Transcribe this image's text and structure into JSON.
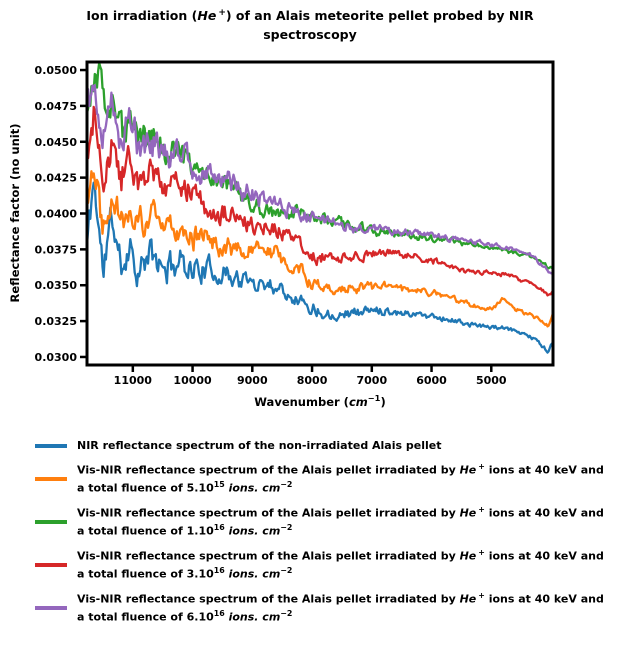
{
  "title": {
    "pre": "Ion irradiation (",
    "ion": "He",
    "ion_sup": "+",
    "post": ") of an Alais meteorite pellet probed by NIR spectroscopy"
  },
  "axes": {
    "ylabel": "Reflectance factor (no unit)",
    "xlabel_pre": "Wavenumber (",
    "xlabel_unit": "cm",
    "xlabel_sup": "−1",
    "xlabel_post": ")"
  },
  "legend": {
    "items": [
      {
        "pre": "NIR reflectance spectrum of the non-irradiated Alais pellet"
      },
      {
        "pre": "Vis-NIR reflectance spectrum of the Alais pellet irradiated by ",
        "ion": "He",
        "ion_sup": "+",
        "mid": " ions at 40 keV and a total fluence of ",
        "coef": "5.10",
        "coef_sup": "15",
        "unit": " ions. cm",
        "unit_sup": "−2"
      },
      {
        "pre": "Vis-NIR reflectance spectrum of the Alais pellet irradiated by ",
        "ion": "He",
        "ion_sup": "+",
        "mid": " ions at 40 keV and a total fluence of ",
        "coef": "1.10",
        "coef_sup": "16",
        "unit": " ions. cm",
        "unit_sup": "−2"
      },
      {
        "pre": "Vis-NIR reflectance spectrum of the Alais pellet irradiated by ",
        "ion": "He",
        "ion_sup": "+",
        "mid": " ions at 40 keV and a total fluence of ",
        "coef": "3.10",
        "coef_sup": "16",
        "unit": " ions. cm",
        "unit_sup": "−2"
      },
      {
        "pre": "Vis-NIR reflectance spectrum of the Alais pellet irradiated by ",
        "ion": "He",
        "ion_sup": "+",
        "mid": " ions at 40 keV and a total fluence of ",
        "coef": "6.10",
        "coef_sup": "16",
        "unit": " ions. cm",
        "unit_sup": "−2"
      }
    ]
  },
  "chart_data": {
    "type": "line",
    "title": "Ion irradiation (He+) of an Alais meteorite pellet probed by NIR spectroscopy",
    "xlabel": "Wavenumber (cm^-1)",
    "ylabel": "Reflectance factor (no unit)",
    "grid": false,
    "legend_position": "below",
    "x_axis": {
      "min": 3967,
      "max": 11767,
      "inverted": true,
      "ticks": [
        11000,
        10000,
        9000,
        8000,
        7000,
        6000,
        5000
      ]
    },
    "y_axis": {
      "min": 0.02944,
      "max": 0.05056,
      "ticks": [
        0.05,
        0.0475,
        0.045,
        0.0425,
        0.04,
        0.0375,
        0.035,
        0.0325,
        0.03
      ],
      "tick_labels": [
        "0.0500",
        "0.0475",
        "0.0450",
        "0.0425",
        "0.0400",
        "0.0375",
        "0.0350",
        "0.0325",
        "0.0300"
      ]
    },
    "noise": {
      "amplitude": 0.0011,
      "envelope_min": 0.1,
      "envelope_power": 2.0,
      "jitter": 0.0004
    },
    "series": [
      {
        "name": "non-irradiated",
        "label": "NIR reflectance spectrum of the non-irradiated Alais pellet",
        "color": "#1f77b4",
        "seed": 11,
        "anchors": [
          [
            11767,
            0.0378
          ],
          [
            11650,
            0.0425
          ],
          [
            11500,
            0.036
          ],
          [
            11350,
            0.0398
          ],
          [
            11200,
            0.0362
          ],
          [
            11050,
            0.038
          ],
          [
            10900,
            0.0358
          ],
          [
            10700,
            0.0372
          ],
          [
            10500,
            0.036
          ],
          [
            10200,
            0.0368
          ],
          [
            10000,
            0.0362
          ],
          [
            9700,
            0.036
          ],
          [
            9400,
            0.0358
          ],
          [
            9100,
            0.0352
          ],
          [
            8800,
            0.0352
          ],
          [
            8500,
            0.0348
          ],
          [
            8200,
            0.034
          ],
          [
            8000,
            0.0334
          ],
          [
            7700,
            0.033
          ],
          [
            7400,
            0.0331
          ],
          [
            7100,
            0.0332
          ],
          [
            6800,
            0.0333
          ],
          [
            6500,
            0.0331
          ],
          [
            6200,
            0.033
          ],
          [
            5900,
            0.0328
          ],
          [
            5600,
            0.0325
          ],
          [
            5300,
            0.0322
          ],
          [
            5000,
            0.0321
          ],
          [
            4700,
            0.0319
          ],
          [
            4400,
            0.0316
          ],
          [
            4200,
            0.031
          ],
          [
            4050,
            0.0304
          ],
          [
            3967,
            0.031
          ]
        ]
      },
      {
        "name": "fluence 5e15",
        "label": "Vis-NIR reflectance spectrum of the Alais pellet irradiated by He+ ions at 40 keV and a total fluence of 5.10^15 ions.cm^-2",
        "color": "#ff7f0e",
        "seed": 22,
        "anchors": [
          [
            11767,
            0.0408
          ],
          [
            11650,
            0.044
          ],
          [
            11500,
            0.0392
          ],
          [
            11350,
            0.042
          ],
          [
            11200,
            0.0395
          ],
          [
            11050,
            0.0408
          ],
          [
            10900,
            0.039
          ],
          [
            10700,
            0.04
          ],
          [
            10500,
            0.0388
          ],
          [
            10200,
            0.0392
          ],
          [
            10000,
            0.0386
          ],
          [
            9700,
            0.0382
          ],
          [
            9400,
            0.0378
          ],
          [
            9100,
            0.0372
          ],
          [
            8800,
            0.0374
          ],
          [
            8500,
            0.037
          ],
          [
            8200,
            0.036
          ],
          [
            8000,
            0.0352
          ],
          [
            7700,
            0.0348
          ],
          [
            7400,
            0.0349
          ],
          [
            7100,
            0.0348
          ],
          [
            6800,
            0.035
          ],
          [
            6500,
            0.0347
          ],
          [
            6200,
            0.0346
          ],
          [
            5900,
            0.0344
          ],
          [
            5600,
            0.034
          ],
          [
            5300,
            0.0336
          ],
          [
            5000,
            0.0334
          ],
          [
            4800,
            0.034
          ],
          [
            4600,
            0.0333
          ],
          [
            4400,
            0.033
          ],
          [
            4200,
            0.0326
          ],
          [
            4050,
            0.0321
          ],
          [
            3967,
            0.033
          ]
        ]
      },
      {
        "name": "fluence 1e16",
        "label": "Vis-NIR reflectance spectrum of the Alais pellet irradiated by He+ ions at 40 keV and a total fluence of 1.10^16 ions.cm^-2",
        "color": "#2ca02c",
        "seed": 33,
        "anchors": [
          [
            11767,
            0.0468
          ],
          [
            11650,
            0.0492
          ],
          [
            11550,
            0.0499
          ],
          [
            11450,
            0.0462
          ],
          [
            11300,
            0.0482
          ],
          [
            11150,
            0.0452
          ],
          [
            11000,
            0.0468
          ],
          [
            10850,
            0.0448
          ],
          [
            10650,
            0.0456
          ],
          [
            10450,
            0.044
          ],
          [
            10200,
            0.0446
          ],
          [
            10000,
            0.0432
          ],
          [
            9700,
            0.0426
          ],
          [
            9400,
            0.042
          ],
          [
            9100,
            0.0406
          ],
          [
            8800,
            0.0403
          ],
          [
            8500,
            0.0401
          ],
          [
            8200,
            0.0398
          ],
          [
            8000,
            0.0396
          ],
          [
            7700,
            0.0394
          ],
          [
            7400,
            0.0391
          ],
          [
            7100,
            0.0389
          ],
          [
            6800,
            0.0387
          ],
          [
            6500,
            0.0386
          ],
          [
            6200,
            0.0384
          ],
          [
            5900,
            0.0382
          ],
          [
            5600,
            0.038
          ],
          [
            5300,
            0.0378
          ],
          [
            5000,
            0.0376
          ],
          [
            4700,
            0.0373
          ],
          [
            4400,
            0.0371
          ],
          [
            4200,
            0.0368
          ],
          [
            4050,
            0.0362
          ],
          [
            3967,
            0.0364
          ]
        ]
      },
      {
        "name": "fluence 3e16",
        "label": "Vis-NIR reflectance spectrum of the Alais pellet irradiated by He+ ions at 40 keV and a total fluence of 3.10^16 ions.cm^-2",
        "color": "#d62728",
        "seed": 44,
        "anchors": [
          [
            11767,
            0.0438
          ],
          [
            11650,
            0.0466
          ],
          [
            11500,
            0.042
          ],
          [
            11350,
            0.0448
          ],
          [
            11200,
            0.0422
          ],
          [
            11050,
            0.0438
          ],
          [
            10900,
            0.0418
          ],
          [
            10700,
            0.0432
          ],
          [
            10500,
            0.0415
          ],
          [
            10200,
            0.0425
          ],
          [
            10000,
            0.0412
          ],
          [
            9700,
            0.0402
          ],
          [
            9400,
            0.0398
          ],
          [
            9100,
            0.0392
          ],
          [
            8800,
            0.039
          ],
          [
            8500,
            0.0388
          ],
          [
            8200,
            0.038
          ],
          [
            8000,
            0.0371
          ],
          [
            7700,
            0.0368
          ],
          [
            7400,
            0.037
          ],
          [
            7100,
            0.0371
          ],
          [
            6800,
            0.0373
          ],
          [
            6500,
            0.0372
          ],
          [
            6200,
            0.037
          ],
          [
            5900,
            0.0366
          ],
          [
            5600,
            0.0362
          ],
          [
            5300,
            0.0358
          ],
          [
            5000,
            0.036
          ],
          [
            4700,
            0.0357
          ],
          [
            4400,
            0.0352
          ],
          [
            4200,
            0.0348
          ],
          [
            4050,
            0.0344
          ],
          [
            3967,
            0.0346
          ]
        ]
      },
      {
        "name": "fluence 6e16",
        "label": "Vis-NIR reflectance spectrum of the Alais pellet irradiated by He+ ions at 40 keV and a total fluence of 6.10^16 ions.cm^-2",
        "color": "#9467bd",
        "seed": 55,
        "anchors": [
          [
            11767,
            0.048
          ],
          [
            11650,
            0.0491
          ],
          [
            11500,
            0.0458
          ],
          [
            11350,
            0.0478
          ],
          [
            11200,
            0.0452
          ],
          [
            11050,
            0.0468
          ],
          [
            10900,
            0.0446
          ],
          [
            10700,
            0.0452
          ],
          [
            10500,
            0.044
          ],
          [
            10200,
            0.0442
          ],
          [
            10000,
            0.0434
          ],
          [
            9700,
            0.0429
          ],
          [
            9400,
            0.0422
          ],
          [
            9100,
            0.0415
          ],
          [
            8800,
            0.041
          ],
          [
            8500,
            0.0406
          ],
          [
            8200,
            0.04
          ],
          [
            8000,
            0.0397
          ],
          [
            7700,
            0.0394
          ],
          [
            7400,
            0.0391
          ],
          [
            7100,
            0.0389
          ],
          [
            6800,
            0.0388
          ],
          [
            6500,
            0.0387
          ],
          [
            6200,
            0.0386
          ],
          [
            5900,
            0.0384
          ],
          [
            5600,
            0.0382
          ],
          [
            5300,
            0.038
          ],
          [
            5000,
            0.0378
          ],
          [
            4700,
            0.0376
          ],
          [
            4400,
            0.0373
          ],
          [
            4200,
            0.0366
          ],
          [
            4050,
            0.036
          ],
          [
            3967,
            0.0357
          ]
        ]
      }
    ]
  }
}
